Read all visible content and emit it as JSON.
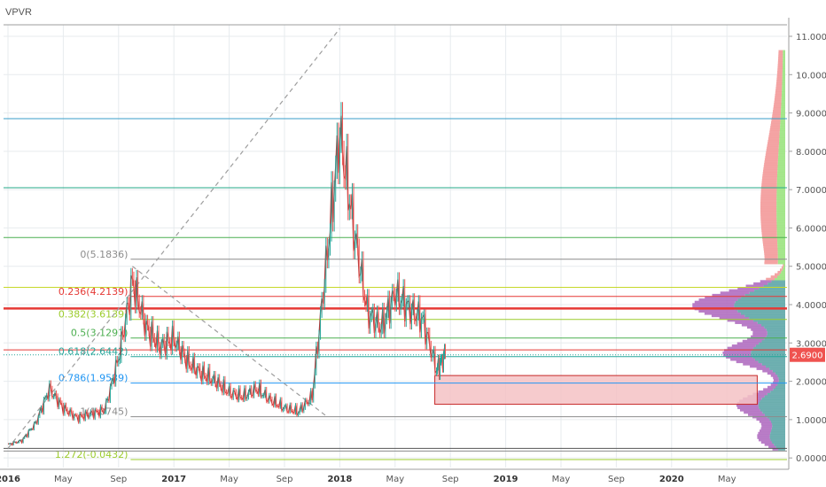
{
  "indicator": "VPVR",
  "price_tag": "2.6900",
  "chart_data": {
    "type": "line",
    "title": "",
    "xlabel": "",
    "ylabel": "",
    "ylim": [
      -0.25,
      11.3
    ],
    "x_ticks": [
      "2016",
      "May",
      "Sep",
      "2017",
      "May",
      "Sep",
      "2018",
      "May",
      "Sep",
      "2019",
      "May",
      "Sep",
      "2020",
      "May"
    ],
    "y_ticks": [
      "0.0000",
      "1.0000",
      "2.0000",
      "3.0000",
      "4.0000",
      "5.0000",
      "6.0000",
      "7.0000",
      "8.0000",
      "9.0000",
      "10.0000",
      "11.0000"
    ],
    "last_price": 2.69,
    "series": [
      {
        "values_by_month": [
          {
            "x": "2016-01",
            "y": 0.35
          },
          {
            "x": "2016-02",
            "y": 0.45
          },
          {
            "x": "2016-03",
            "y": 0.9
          },
          {
            "x": "2016-04",
            "y": 1.8
          },
          {
            "x": "2016-05",
            "y": 1.3
          },
          {
            "x": "2016-06",
            "y": 1.05
          },
          {
            "x": "2016-07",
            "y": 1.15
          },
          {
            "x": "2016-08",
            "y": 1.25
          },
          {
            "x": "2016-09",
            "y": 2.6
          },
          {
            "x": "2016-10",
            "y": 4.6
          },
          {
            "x": "2016-11",
            "y": 3.4
          },
          {
            "x": "2016-12",
            "y": 2.9
          },
          {
            "x": "2017-01",
            "y": 3.1
          },
          {
            "x": "2017-02",
            "y": 2.5
          },
          {
            "x": "2017-03",
            "y": 2.2
          },
          {
            "x": "2017-04",
            "y": 2.0
          },
          {
            "x": "2017-05",
            "y": 1.7
          },
          {
            "x": "2017-06",
            "y": 1.6
          },
          {
            "x": "2017-07",
            "y": 1.8
          },
          {
            "x": "2017-08",
            "y": 1.5
          },
          {
            "x": "2017-09",
            "y": 1.3
          },
          {
            "x": "2017-10",
            "y": 1.2
          },
          {
            "x": "2017-11",
            "y": 1.6
          },
          {
            "x": "2017-12",
            "y": 5.0
          },
          {
            "x": "2018-01",
            "y": 8.5
          },
          {
            "x": "2018-02",
            "y": 6.0
          },
          {
            "x": "2018-03",
            "y": 3.8
          },
          {
            "x": "2018-04",
            "y": 3.4
          },
          {
            "x": "2018-05",
            "y": 4.3
          },
          {
            "x": "2018-06",
            "y": 3.9
          },
          {
            "x": "2018-07",
            "y": 3.6
          },
          {
            "x": "2018-08",
            "y": 2.3
          },
          {
            "x": "2018-08-20",
            "y": 2.69
          }
        ]
      }
    ],
    "horizontal_lines": [
      {
        "value": 8.85,
        "color": "#3a9ec9"
      },
      {
        "value": 7.05,
        "color": "#26a98a"
      },
      {
        "value": 5.75,
        "color": "#4caf50"
      },
      {
        "value": 4.45,
        "color": "#c6d82a"
      },
      {
        "value": 3.9,
        "color": "#e53935"
      },
      {
        "value": 2.82,
        "color": "#e53935"
      }
    ],
    "fibonacci": [
      {
        "label": "0(5.1836)",
        "value": 5.1836,
        "color": "#8c8c8c"
      },
      {
        "label": "0.236(4.2139)",
        "value": 4.2139,
        "color": "#e53935"
      },
      {
        "label": "0.382(3.6139)",
        "value": 3.6139,
        "color": "#9ccc2c"
      },
      {
        "label": "0.5(3.1291)",
        "value": 3.1291,
        "color": "#4caf50"
      },
      {
        "label": "0.618(2.6442)",
        "value": 2.6442,
        "color": "#26a69a"
      },
      {
        "label": "0.786(1.9539)",
        "value": 1.9539,
        "color": "#2196f3"
      },
      {
        "label": "1(1.0745)",
        "value": 1.0745,
        "color": "#8c8c8c"
      },
      {
        "label": "1.272(-0.0432)",
        "value": -0.0432,
        "color": "#9ccc2c"
      }
    ],
    "trend_lines": [
      {
        "from": {
          "x": "2016-01",
          "y": 0.25
        },
        "to": {
          "x": "2018-01",
          "y": 11.2
        }
      },
      {
        "from": {
          "x": "2016-10",
          "y": 5.0
        },
        "to": {
          "x": "2017-12",
          "y": 1.1
        }
      }
    ],
    "zone": {
      "x_from": "2018-08",
      "x_to": "2020-07",
      "y_from": 1.4,
      "y_to": 2.15,
      "fill": "#f4c2c4",
      "stroke": "#c62828"
    },
    "colors": {
      "up": "#26a69a",
      "down": "#ef5350",
      "line": "#b03a3a",
      "grid": "#e7ebee",
      "axis_text": "#555555",
      "tag": "#ef5350"
    }
  }
}
